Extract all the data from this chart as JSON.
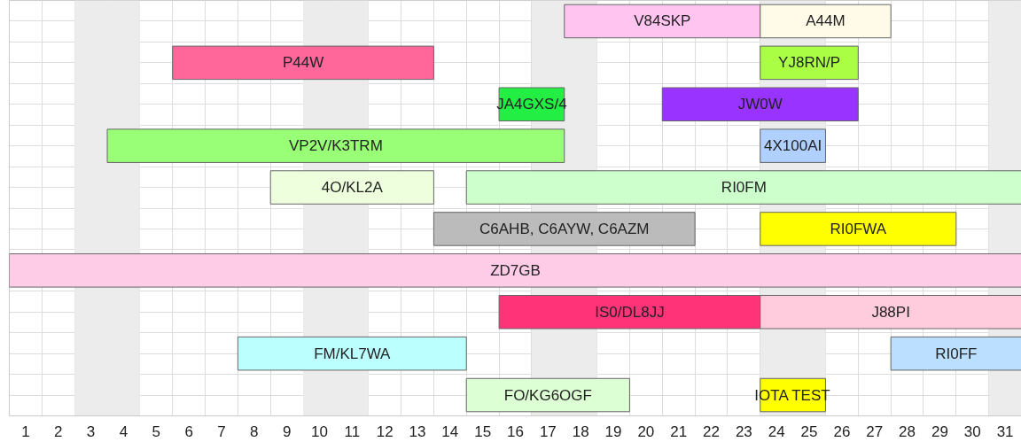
{
  "chart_data": {
    "type": "bar",
    "orientation": "horizontal",
    "categories": [
      null,
      null,
      null,
      null,
      null,
      null,
      null,
      null,
      null,
      null
    ],
    "xlim": [
      0.5,
      31.5
    ],
    "xticks": [
      1,
      2,
      3,
      4,
      5,
      6,
      7,
      8,
      9,
      10,
      11,
      12,
      13,
      14,
      15,
      16,
      17,
      18,
      19,
      20,
      21,
      22,
      23,
      24,
      25,
      26,
      27,
      28,
      29,
      30,
      31
    ],
    "tick_labels": "x",
    "grid": true,
    "legend": false,
    "bands": [
      {
        "axis": "x",
        "from": 2.5,
        "to": 4.5,
        "color": "#ececec"
      },
      {
        "axis": "x",
        "from": 9.5,
        "to": 11.5,
        "color": "#ececec"
      },
      {
        "axis": "x",
        "from": 16.5,
        "to": 18.5,
        "color": "#ececec"
      },
      {
        "axis": "x",
        "from": 23.5,
        "to": 25.5,
        "color": "#ececec"
      },
      {
        "axis": "x",
        "from": 30.5,
        "to": 31.5,
        "color": "#ececec"
      }
    ],
    "series": [
      {
        "name": "V84SKP",
        "color": "#ffc4f0",
        "base": [
          17.5,
          null,
          null,
          null,
          null,
          null,
          null,
          null,
          null,
          null
        ],
        "values": [
          6,
          null,
          null,
          null,
          null,
          null,
          null,
          null,
          null,
          null
        ]
      },
      {
        "name": "A44M",
        "color": "#fffbe8",
        "base": [
          23.5,
          null,
          null,
          null,
          null,
          null,
          null,
          null,
          null,
          null
        ],
        "values": [
          4,
          null,
          null,
          null,
          null,
          null,
          null,
          null,
          null,
          null
        ]
      },
      {
        "name": "P44W",
        "color": "#ff6699",
        "base": [
          null,
          5.5,
          null,
          null,
          null,
          null,
          null,
          null,
          null,
          null
        ],
        "values": [
          null,
          8,
          null,
          null,
          null,
          null,
          null,
          null,
          null,
          null
        ]
      },
      {
        "name": "YJ8RN/P",
        "color": "#aaff44",
        "base": [
          null,
          23.5,
          null,
          null,
          null,
          null,
          null,
          null,
          null,
          null
        ],
        "values": [
          null,
          3,
          null,
          null,
          null,
          null,
          null,
          null,
          null,
          null
        ]
      },
      {
        "name": "JA4GXS/4",
        "color": "#22ee44",
        "base": [
          null,
          null,
          15.5,
          null,
          null,
          null,
          null,
          null,
          null,
          null
        ],
        "values": [
          null,
          null,
          2,
          null,
          null,
          null,
          null,
          null,
          null,
          null
        ]
      },
      {
        "name": "JW0W",
        "color": "#9933ff",
        "base": [
          null,
          null,
          20.5,
          null,
          null,
          null,
          null,
          null,
          null,
          null
        ],
        "values": [
          null,
          null,
          6,
          null,
          null,
          null,
          null,
          null,
          null,
          null
        ]
      },
      {
        "name": "VP2V/K3TRM",
        "color": "#99ff77",
        "base": [
          null,
          null,
          null,
          3.5,
          null,
          null,
          null,
          null,
          null,
          null
        ],
        "values": [
          null,
          null,
          null,
          14,
          null,
          null,
          null,
          null,
          null,
          null
        ]
      },
      {
        "name": "4X100AI",
        "color": "#b0d0ff",
        "base": [
          null,
          null,
          null,
          23.5,
          null,
          null,
          null,
          null,
          null,
          null
        ],
        "values": [
          null,
          null,
          null,
          2,
          null,
          null,
          null,
          null,
          null,
          null
        ]
      },
      {
        "name": "4O/KL2A",
        "color": "#eeffdd",
        "base": [
          null,
          null,
          null,
          null,
          8.5,
          null,
          null,
          null,
          null,
          null
        ],
        "values": [
          null,
          null,
          null,
          null,
          5,
          null,
          null,
          null,
          null,
          null
        ]
      },
      {
        "name": "RI0FM",
        "color": "#ccffcc",
        "base": [
          null,
          null,
          null,
          null,
          14.5,
          null,
          null,
          null,
          null,
          null
        ],
        "values": [
          null,
          null,
          null,
          null,
          17,
          null,
          null,
          null,
          null,
          null
        ]
      },
      {
        "name": "C6AHB, C6AYW, C6AZM",
        "color": "#bbbbbb",
        "base": [
          null,
          null,
          null,
          null,
          null,
          13.5,
          null,
          null,
          null,
          null
        ],
        "values": [
          null,
          null,
          null,
          null,
          null,
          8,
          null,
          null,
          null,
          null
        ]
      },
      {
        "name": "RI0FWA",
        "color": "#ffff00",
        "base": [
          null,
          null,
          null,
          null,
          null,
          23.5,
          null,
          null,
          null,
          null
        ],
        "values": [
          null,
          null,
          null,
          null,
          null,
          6,
          null,
          null,
          null,
          null
        ]
      },
      {
        "name": "ZD7GB",
        "color": "#ffcce8",
        "base": [
          null,
          null,
          null,
          null,
          null,
          null,
          0.5,
          null,
          null,
          null
        ],
        "values": [
          null,
          null,
          null,
          null,
          null,
          null,
          31,
          null,
          null,
          null
        ]
      },
      {
        "name": "IS0/DL8JJ",
        "color": "#ff3377",
        "base": [
          null,
          null,
          null,
          null,
          null,
          null,
          null,
          15.5,
          null,
          null
        ],
        "values": [
          null,
          null,
          null,
          null,
          null,
          null,
          null,
          8,
          null,
          null
        ]
      },
      {
        "name": "J88PI",
        "color": "#ffccdd",
        "base": [
          null,
          null,
          null,
          null,
          null,
          null,
          null,
          23.5,
          null,
          null
        ],
        "values": [
          null,
          null,
          null,
          null,
          null,
          null,
          null,
          8,
          null,
          null
        ]
      },
      {
        "name": "FM/KL7WA",
        "color": "#bbffff",
        "base": [
          null,
          null,
          null,
          null,
          null,
          null,
          null,
          null,
          7.5,
          null
        ],
        "values": [
          null,
          null,
          null,
          null,
          null,
          null,
          null,
          null,
          7,
          null
        ]
      },
      {
        "name": "RI0FF",
        "color": "#bbe0ff",
        "base": [
          null,
          null,
          null,
          null,
          null,
          null,
          null,
          null,
          27.5,
          null
        ],
        "values": [
          null,
          null,
          null,
          null,
          null,
          null,
          null,
          null,
          4,
          null
        ]
      },
      {
        "name": "FO/KG6OGF",
        "color": "#ddffd4",
        "base": [
          null,
          null,
          null,
          null,
          null,
          null,
          null,
          null,
          null,
          14.5
        ],
        "values": [
          null,
          null,
          null,
          null,
          null,
          null,
          null,
          null,
          null,
          5
        ]
      },
      {
        "name": "IOTA TEST",
        "color": "#ffff00",
        "base": [
          null,
          null,
          null,
          null,
          null,
          null,
          null,
          null,
          null,
          23.5
        ],
        "values": [
          null,
          null,
          null,
          null,
          null,
          null,
          null,
          null,
          null,
          2
        ]
      }
    ]
  }
}
